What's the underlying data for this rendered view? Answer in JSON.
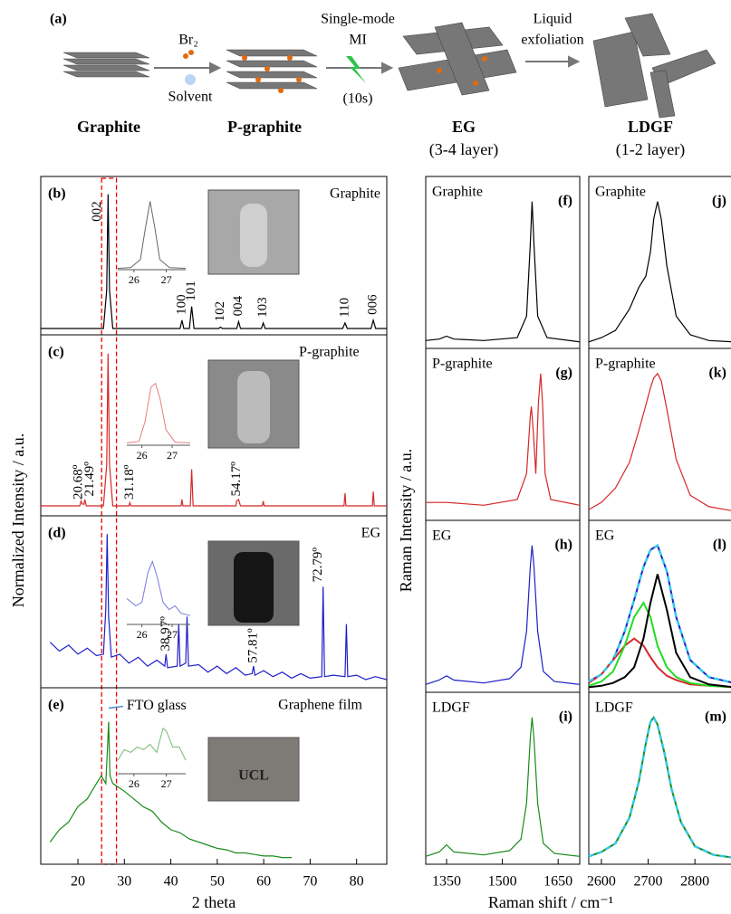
{
  "scheme": {
    "panel_label": "(a)",
    "reagent": "Br₂",
    "solvent": "Solvent",
    "mi_line1": "Single-mode",
    "mi_line2": "MI",
    "mi_time": "(10s)",
    "exfoliation_line1": "Liquid",
    "exfoliation_line2": "exfoliation",
    "stages": [
      {
        "name": "Graphite"
      },
      {
        "name": "P-graphite"
      },
      {
        "name": "EG",
        "note": "(3-4 layer)"
      },
      {
        "name": "LDGF",
        "note": "(1-2 layer)"
      }
    ]
  },
  "chart_data": [
    {
      "type": "line",
      "panel_label": "(b)",
      "label": "Graphite",
      "ylabel": "Normalized Intensity / a.u.",
      "color": "#000000",
      "xlim": [
        12,
        86.5
      ],
      "ylim": [
        0,
        1.05
      ],
      "highlight_xrange": [
        25.1,
        28.3
      ],
      "annotation_rotation": -90,
      "x": [
        12,
        25.5,
        26.2,
        26.5,
        26.8,
        27.5,
        42.0,
        42.4,
        42.8,
        44.0,
        44.5,
        45.0,
        50.3,
        50.7,
        51.1,
        54.2,
        54.6,
        55.0,
        59.5,
        59.9,
        60.3,
        77.0,
        77.5,
        78.0,
        83.1,
        83.6,
        84.1,
        86.5
      ],
      "values": [
        0.02,
        0.02,
        0.3,
        1.0,
        0.3,
        0.02,
        0.02,
        0.08,
        0.02,
        0.02,
        0.18,
        0.02,
        0.02,
        0.03,
        0.02,
        0.02,
        0.07,
        0.02,
        0.02,
        0.06,
        0.02,
        0.02,
        0.06,
        0.02,
        0.02,
        0.08,
        0.02,
        0.02
      ],
      "annotations": [
        {
          "text": "002",
          "x": 24.2,
          "y": 0.8
        },
        {
          "text": "100",
          "x": 42.4,
          "y": 0.12
        },
        {
          "text": "101",
          "x": 44.5,
          "y": 0.22
        },
        {
          "text": "102",
          "x": 50.7,
          "y": 0.07
        },
        {
          "text": "004",
          "x": 54.6,
          "y": 0.11
        },
        {
          "text": "103",
          "x": 59.9,
          "y": 0.1
        },
        {
          "text": "110",
          "x": 77.5,
          "y": 0.1
        },
        {
          "text": "006",
          "x": 83.6,
          "y": 0.12
        }
      ],
      "inset": {
        "xlim": [
          25.5,
          27.6
        ],
        "ylim": [
          0,
          1.1
        ],
        "xticks": [
          26,
          27
        ],
        "x": [
          25.5,
          25.9,
          26.2,
          26.35,
          26.5,
          26.65,
          26.8,
          27.1,
          27.6
        ],
        "values": [
          0.02,
          0.03,
          0.15,
          0.6,
          1.0,
          0.6,
          0.15,
          0.03,
          0.02
        ]
      }
    },
    {
      "type": "line",
      "panel_label": "(c)",
      "label": "P-graphite",
      "color": "#d62728",
      "xlim": [
        12,
        86.5
      ],
      "ylim": [
        0,
        1.05
      ],
      "annotation_rotation": -90,
      "x": [
        12,
        20.4,
        20.68,
        21.0,
        21.3,
        21.49,
        21.8,
        25.5,
        26.2,
        26.5,
        26.8,
        27.5,
        31.0,
        31.18,
        31.4,
        42.2,
        42.4,
        42.6,
        44.2,
        44.5,
        44.8,
        54.0,
        54.17,
        54.6,
        55.0,
        59.7,
        59.9,
        60.1,
        77.3,
        77.5,
        77.7,
        83.4,
        83.6,
        83.8,
        86.5
      ],
      "values": [
        0.04,
        0.04,
        0.07,
        0.05,
        0.05,
        0.08,
        0.04,
        0.04,
        0.3,
        1.0,
        0.3,
        0.04,
        0.04,
        0.06,
        0.04,
        0.04,
        0.08,
        0.04,
        0.04,
        0.27,
        0.04,
        0.04,
        0.07,
        0.08,
        0.04,
        0.04,
        0.07,
        0.04,
        0.04,
        0.12,
        0.04,
        0.04,
        0.13,
        0.04,
        0.04
      ],
      "annotations": [
        {
          "text": "20.68º",
          "x": 20.2,
          "y": 0.08
        },
        {
          "text": "21.49º",
          "x": 22.6,
          "y": 0.1
        },
        {
          "text": "31.18º",
          "x": 31.2,
          "y": 0.08
        },
        {
          "text": "54.17º",
          "x": 54.2,
          "y": 0.1
        }
      ],
      "inset": {
        "xlim": [
          25.5,
          27.6
        ],
        "ylim": [
          0,
          1.1
        ],
        "xticks": [
          26,
          27
        ],
        "x": [
          25.5,
          25.9,
          26.1,
          26.3,
          26.45,
          26.6,
          26.8,
          27.1,
          27.6
        ],
        "values": [
          0.03,
          0.05,
          0.3,
          0.75,
          0.8,
          0.6,
          0.2,
          0.04,
          0.03
        ]
      }
    },
    {
      "type": "line",
      "panel_label": "(d)",
      "label": "EG",
      "color": "#1f1fc8",
      "xlim": [
        12,
        86.5
      ],
      "ylim": [
        0,
        1.05
      ],
      "annotation_rotation": -90,
      "x": [
        14,
        16,
        18,
        20,
        22,
        24,
        25.5,
        26.0,
        26.3,
        26.6,
        27.2,
        29,
        31,
        33,
        35,
        37,
        38.7,
        38.97,
        39.3,
        41.4,
        41.7,
        42.0,
        43.2,
        43.5,
        43.8,
        46,
        48,
        50,
        52,
        54,
        56,
        57.5,
        57.81,
        58.1,
        60,
        62,
        64,
        66,
        68,
        70,
        72.5,
        72.79,
        73.1,
        75,
        77.5,
        77.8,
        78.1,
        80,
        82,
        84,
        86.5
      ],
      "values": [
        0.28,
        0.22,
        0.26,
        0.2,
        0.24,
        0.19,
        0.2,
        0.5,
        1.0,
        0.45,
        0.18,
        0.2,
        0.14,
        0.18,
        0.12,
        0.16,
        0.12,
        0.2,
        0.11,
        0.12,
        0.4,
        0.12,
        0.14,
        0.45,
        0.12,
        0.13,
        0.08,
        0.12,
        0.07,
        0.11,
        0.06,
        0.07,
        0.12,
        0.06,
        0.09,
        0.05,
        0.08,
        0.04,
        0.07,
        0.04,
        0.05,
        0.65,
        0.05,
        0.06,
        0.05,
        0.4,
        0.05,
        0.06,
        0.03,
        0.05,
        0.03
      ],
      "annotations": [
        {
          "text": "38.97º",
          "x": 39.0,
          "y": 0.22
        },
        {
          "text": "57.81º",
          "x": 57.8,
          "y": 0.14
        },
        {
          "text": "72.79º",
          "x": 71.8,
          "y": 0.68
        }
      ],
      "inset": {
        "xlim": [
          25.5,
          27.6
        ],
        "ylim": [
          0,
          1.1
        ],
        "xticks": [
          26,
          27
        ],
        "x": [
          25.5,
          25.8,
          26.0,
          26.2,
          26.35,
          26.5,
          26.7,
          26.9,
          27.1,
          27.3,
          27.6
        ],
        "values": [
          0.35,
          0.25,
          0.3,
          0.7,
          0.85,
          0.65,
          0.3,
          0.2,
          0.25,
          0.15,
          0.12
        ]
      }
    },
    {
      "type": "line",
      "panel_label": "(e)",
      "label": "Graphene film",
      "photo_text": "UCL",
      "xlabel": "2 theta",
      "color": "#1a8a1a",
      "xlim": [
        12,
        86.5
      ],
      "ylim": [
        0,
        1.05
      ],
      "xticks": [
        20,
        30,
        40,
        50,
        60,
        70,
        80
      ],
      "x": [
        14,
        16,
        18,
        20,
        22,
        24,
        25,
        26,
        26.4,
        26.6,
        26.9,
        27.5,
        28.5,
        30,
        32,
        34,
        36,
        38,
        40,
        42,
        44,
        46,
        48,
        50,
        52,
        54,
        56,
        58,
        60,
        62,
        64,
        66
      ],
      "values": [
        0.12,
        0.2,
        0.25,
        0.35,
        0.4,
        0.5,
        0.55,
        0.5,
        0.75,
        0.9,
        0.55,
        0.5,
        0.48,
        0.45,
        0.4,
        0.35,
        0.32,
        0.25,
        0.2,
        0.18,
        0.14,
        0.12,
        0.1,
        0.08,
        0.07,
        0.05,
        0.05,
        0.04,
        0.03,
        0.03,
        0.02,
        0.02
      ],
      "annotations": [
        {
          "text": "FTO glass",
          "x": 30.5,
          "y": 1.0
        }
      ],
      "inset": {
        "xlim": [
          25.5,
          27.6
        ],
        "ylim": [
          0,
          1.1
        ],
        "xticks": [
          26,
          27
        ],
        "x": [
          25.5,
          25.7,
          25.9,
          26.1,
          26.3,
          26.5,
          26.7,
          26.9,
          27.0,
          27.2,
          27.4,
          27.6
        ],
        "values": [
          0.25,
          0.45,
          0.4,
          0.5,
          0.45,
          0.55,
          0.4,
          0.85,
          0.8,
          0.5,
          0.5,
          0.25
        ]
      }
    },
    {
      "type": "line",
      "panel_label": "(f)",
      "label": "Graphite",
      "ylabel": "Raman Intensity / a.u.",
      "color": "#000000",
      "xlim": [
        1294,
        1708
      ],
      "ylim": [
        0,
        1.1
      ],
      "x": [
        1294,
        1330,
        1350,
        1370,
        1450,
        1540,
        1565,
        1575,
        1580,
        1585,
        1595,
        1620,
        1708
      ],
      "values": [
        0.03,
        0.04,
        0.06,
        0.04,
        0.03,
        0.05,
        0.2,
        0.7,
        1.0,
        0.7,
        0.2,
        0.05,
        0.02
      ]
    },
    {
      "type": "line",
      "panel_label": "(g)",
      "label": "P-graphite",
      "color": "#d62728",
      "xlim": [
        1294,
        1708
      ],
      "ylim": [
        0,
        1.1
      ],
      "x": [
        1294,
        1350,
        1450,
        1540,
        1565,
        1575,
        1578,
        1583,
        1590,
        1597,
        1603,
        1608,
        1615,
        1630,
        1708
      ],
      "values": [
        0.1,
        0.1,
        0.08,
        0.12,
        0.3,
        0.7,
        0.77,
        0.6,
        0.3,
        0.8,
        1.0,
        0.8,
        0.3,
        0.12,
        0.08
      ]
    },
    {
      "type": "line",
      "panel_label": "(h)",
      "label": "EG",
      "color": "#1f1fc8",
      "xlim": [
        1294,
        1708
      ],
      "ylim": [
        0,
        1.1
      ],
      "x": [
        1294,
        1330,
        1350,
        1370,
        1450,
        1520,
        1550,
        1565,
        1575,
        1580,
        1585,
        1595,
        1610,
        1640,
        1708
      ],
      "values": [
        0.03,
        0.06,
        0.09,
        0.06,
        0.04,
        0.07,
        0.15,
        0.4,
        0.85,
        1.0,
        0.85,
        0.4,
        0.12,
        0.05,
        0.03
      ]
    },
    {
      "type": "line",
      "panel_label": "(i)",
      "label": "LDGF",
      "xlabel": "Raman shift / cm⁻¹",
      "color": "#1a8a1a",
      "xlim": [
        1294,
        1708
      ],
      "ylim": [
        0,
        1.1
      ],
      "xticks": [
        1350,
        1500,
        1650
      ],
      "x": [
        1294,
        1330,
        1350,
        1370,
        1450,
        1520,
        1550,
        1565,
        1575,
        1580,
        1585,
        1595,
        1610,
        1640,
        1708
      ],
      "values": [
        0.03,
        0.06,
        0.11,
        0.06,
        0.04,
        0.07,
        0.15,
        0.4,
        0.85,
        1.0,
        0.85,
        0.4,
        0.12,
        0.05,
        0.03
      ]
    },
    {
      "type": "line",
      "panel_label": "(j)",
      "label": "Graphite",
      "color": "#000000",
      "xlim": [
        2573,
        2883
      ],
      "ylim": [
        0,
        1.1
      ],
      "x": [
        2573,
        2600,
        2630,
        2660,
        2680,
        2695,
        2705,
        2712,
        2720,
        2728,
        2740,
        2760,
        2790,
        2830,
        2883
      ],
      "values": [
        0.02,
        0.05,
        0.1,
        0.25,
        0.4,
        0.48,
        0.65,
        0.88,
        1.0,
        0.88,
        0.55,
        0.2,
        0.07,
        0.03,
        0.02
      ]
    },
    {
      "type": "line",
      "panel_label": "(k)",
      "label": "P-graphite",
      "color": "#d62728",
      "xlim": [
        2573,
        2883
      ],
      "ylim": [
        0,
        1.1
      ],
      "x": [
        2573,
        2600,
        2630,
        2660,
        2680,
        2695,
        2705,
        2712,
        2720,
        2728,
        2740,
        2760,
        2790,
        2830,
        2883
      ],
      "values": [
        0.05,
        0.1,
        0.2,
        0.38,
        0.6,
        0.78,
        0.9,
        0.97,
        1.0,
        0.95,
        0.75,
        0.4,
        0.15,
        0.07,
        0.04
      ]
    },
    {
      "type": "line",
      "panel_label": "(l)",
      "label": "EG",
      "xlim": [
        2573,
        2883
      ],
      "ylim": [
        0,
        1.1
      ],
      "x": [
        2573,
        2600,
        2625,
        2650,
        2670,
        2690,
        2705,
        2720,
        2740,
        2760,
        2790,
        2830,
        2883
      ],
      "series": [
        {
          "color": "#1f1fc8",
          "values": [
            0.05,
            0.1,
            0.2,
            0.4,
            0.62,
            0.85,
            0.97,
            1.0,
            0.82,
            0.5,
            0.2,
            0.08,
            0.04
          ]
        },
        {
          "color": "#d62728",
          "values": [
            0.04,
            0.1,
            0.2,
            0.3,
            0.35,
            0.3,
            0.22,
            0.15,
            0.09,
            0.06,
            0.03,
            0.02,
            0.01
          ]
        },
        {
          "color": "#22dd22",
          "values": [
            0.02,
            0.05,
            0.12,
            0.3,
            0.5,
            0.6,
            0.5,
            0.3,
            0.15,
            0.08,
            0.04,
            0.02,
            0.01
          ]
        },
        {
          "color": "#000000",
          "values": [
            0.01,
            0.02,
            0.04,
            0.08,
            0.15,
            0.35,
            0.6,
            0.8,
            0.55,
            0.25,
            0.08,
            0.03,
            0.01
          ]
        },
        {
          "color": "#33c8e8",
          "dash": true,
          "values": [
            0.05,
            0.1,
            0.2,
            0.4,
            0.62,
            0.85,
            0.97,
            1.0,
            0.82,
            0.5,
            0.2,
            0.08,
            0.04
          ]
        }
      ]
    },
    {
      "type": "line",
      "panel_label": "(m)",
      "label": "LDGF",
      "xlim": [
        2573,
        2883
      ],
      "ylim": [
        0,
        1.1
      ],
      "xticks": [
        2600,
        2700,
        2800
      ],
      "x": [
        2573,
        2600,
        2630,
        2660,
        2680,
        2695,
        2705,
        2712,
        2720,
        2735,
        2750,
        2770,
        2800,
        2840,
        2883
      ],
      "series": [
        {
          "color": "#1a8a1a",
          "values": [
            0.03,
            0.06,
            0.12,
            0.3,
            0.55,
            0.82,
            0.97,
            1.0,
            0.95,
            0.75,
            0.5,
            0.27,
            0.1,
            0.04,
            0.02
          ]
        },
        {
          "color": "#33c8e8",
          "dash": true,
          "values": [
            0.03,
            0.06,
            0.12,
            0.3,
            0.55,
            0.82,
            0.97,
            1.0,
            0.95,
            0.75,
            0.5,
            0.27,
            0.1,
            0.04,
            0.02
          ]
        }
      ]
    }
  ]
}
